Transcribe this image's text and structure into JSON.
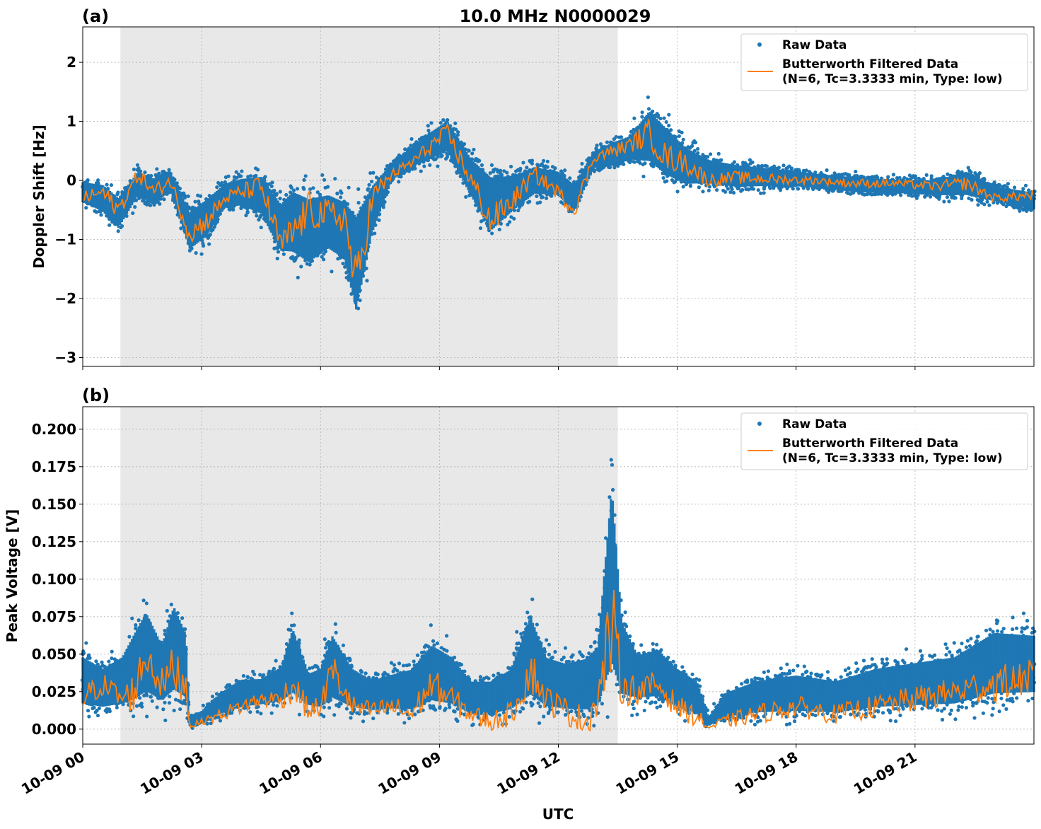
{
  "figure": {
    "title": "10.0 MHz N0000029",
    "xlabel": "UTC",
    "x_tick_labels": [
      "10-09 00",
      "10-09 03",
      "10-09 06",
      "10-09 09",
      "10-09 12",
      "10-09 15",
      "10-09 18",
      "10-09 21"
    ],
    "colors": {
      "raw": "#1f77b4",
      "filtered": "#ff7f0e",
      "night_shade": "#e8e8e8",
      "grid": "#b0b0b0"
    }
  },
  "chart_data": [
    {
      "type": "scatter",
      "panel_label": "(a)",
      "title": "10.0 MHz N0000029",
      "xlabel": "",
      "ylabel": "Doppler Shift [Hz]",
      "x_unit": "hours UTC since 10-09 00:00",
      "xlim": [
        0,
        24
      ],
      "ylim": [
        -3.15,
        2.6
      ],
      "yticks": [
        2,
        1,
        0,
        -1,
        -2,
        -3
      ],
      "ytick_labels": [
        "2",
        "1",
        "0",
        "−1",
        "−2",
        "−3"
      ],
      "shaded_region": [
        0.95,
        13.5
      ],
      "grid": true,
      "legend": {
        "placement": "top-right",
        "entries": [
          "Raw Data",
          "Butterworth Filtered Data",
          "(N=6, Tc=3.3333 min, Type: low)"
        ]
      },
      "series": [
        {
          "name": "Raw Data",
          "kind": "scatter-band",
          "x": [
            0,
            0.5,
            0.9,
            1.4,
            1.8,
            2.2,
            2.7,
            3.1,
            3.6,
            4.0,
            4.5,
            5.0,
            5.3,
            5.7,
            6.2,
            6.6,
            6.9,
            7.3,
            7.8,
            8.3,
            8.8,
            9.2,
            9.8,
            10.3,
            10.9,
            11.4,
            12.0,
            12.4,
            12.9,
            13.4,
            13.8,
            14.3,
            14.7,
            15.2,
            15.8,
            16.5,
            17.5,
            18.5,
            19.5,
            20.5,
            21.5,
            22.3,
            23.0,
            24.0
          ],
          "upper": [
            0.1,
            0.1,
            -0.1,
            0.3,
            0.2,
            0.3,
            -0.3,
            -0.1,
            0.1,
            0.2,
            0.3,
            -0.1,
            0.2,
            0.1,
            0.1,
            0.0,
            0.0,
            0.2,
            0.4,
            0.7,
            1.0,
            1.2,
            0.6,
            0.4,
            0.3,
            0.4,
            0.3,
            0.1,
            0.6,
            0.8,
            0.9,
            1.5,
            1.2,
            0.8,
            0.5,
            0.4,
            0.3,
            0.2,
            0.15,
            0.1,
            0.1,
            0.3,
            0.0,
            -0.1
          ],
          "lower": [
            -0.5,
            -0.7,
            -1.0,
            -0.4,
            -0.6,
            -0.3,
            -1.4,
            -1.2,
            -0.6,
            -0.6,
            -0.8,
            -1.5,
            -1.6,
            -1.8,
            -1.5,
            -1.7,
            -2.8,
            -1.2,
            -0.1,
            0.1,
            0.2,
            0.3,
            -0.5,
            -1.2,
            -0.7,
            -0.4,
            -0.4,
            -0.7,
            0.1,
            0.1,
            0.2,
            0.0,
            -0.2,
            -0.3,
            -0.2,
            -0.25,
            -0.2,
            -0.2,
            -0.3,
            -0.3,
            -0.35,
            -0.4,
            -0.45,
            -0.6
          ]
        },
        {
          "name": "Butterworth Filtered Data",
          "kind": "line",
          "x": [
            0,
            0.5,
            0.9,
            1.4,
            1.8,
            2.2,
            2.7,
            3.1,
            3.6,
            4.0,
            4.5,
            5.0,
            5.3,
            5.7,
            6.2,
            6.6,
            6.9,
            7.3,
            7.8,
            8.3,
            8.8,
            9.2,
            9.8,
            10.3,
            10.9,
            11.4,
            12.0,
            12.4,
            12.9,
            13.4,
            13.8,
            14.3,
            14.7,
            15.2,
            15.8,
            16.5,
            17.5,
            18.5,
            19.5,
            20.5,
            21.5,
            22.3,
            23.0,
            24.0
          ],
          "y": [
            -0.3,
            -0.2,
            -0.5,
            0.1,
            -0.2,
            0.0,
            -0.9,
            -0.7,
            -0.3,
            -0.2,
            -0.1,
            -1.1,
            -0.9,
            -0.5,
            -0.6,
            -0.6,
            -1.8,
            -0.3,
            0.1,
            0.3,
            0.6,
            0.8,
            0.0,
            -0.7,
            -0.3,
            0.1,
            -0.2,
            -0.5,
            0.4,
            0.5,
            0.6,
            0.8,
            0.4,
            0.3,
            0.0,
            0.05,
            0.02,
            0.0,
            -0.05,
            -0.05,
            -0.1,
            -0.05,
            -0.3,
            -0.25
          ]
        }
      ]
    },
    {
      "type": "scatter",
      "panel_label": "(b)",
      "title": "",
      "xlabel": "UTC",
      "ylabel": "Peak Voltage [V]",
      "x_unit": "hours UTC since 10-09 00:00",
      "xlim": [
        0,
        24
      ],
      "ylim": [
        -0.01,
        0.215
      ],
      "yticks": [
        0.2,
        0.175,
        0.15,
        0.125,
        0.1,
        0.075,
        0.05,
        0.025,
        0.0
      ],
      "ytick_labels": [
        "0.200",
        "0.175",
        "0.150",
        "0.125",
        "0.100",
        "0.075",
        "0.050",
        "0.025",
        "0.000"
      ],
      "shaded_region": [
        0.95,
        13.5
      ],
      "grid": true,
      "legend": {
        "placement": "top-right",
        "entries": [
          "Raw Data",
          "Butterworth Filtered Data",
          "(N=6, Tc=3.3333 min, Type: low)"
        ]
      },
      "series": [
        {
          "name": "Raw Data",
          "kind": "scatter-band",
          "x": [
            0,
            0.5,
            1.0,
            1.3,
            1.6,
            2.0,
            2.3,
            2.6,
            2.7,
            3.0,
            3.5,
            4.0,
            4.5,
            5.0,
            5.3,
            5.7,
            6.0,
            6.3,
            6.8,
            7.3,
            7.8,
            8.3,
            8.8,
            9.3,
            9.8,
            10.3,
            10.8,
            11.3,
            11.7,
            12.2,
            12.7,
            13.0,
            13.35,
            13.6,
            14.0,
            14.5,
            15.0,
            15.5,
            15.8,
            16.2,
            17.0,
            18.0,
            19.0,
            20.0,
            21.0,
            22.0,
            23.0,
            24.0
          ],
          "upper": [
            0.06,
            0.05,
            0.06,
            0.08,
            0.098,
            0.07,
            0.103,
            0.08,
            0.01,
            0.015,
            0.03,
            0.04,
            0.04,
            0.05,
            0.083,
            0.045,
            0.05,
            0.078,
            0.05,
            0.04,
            0.045,
            0.05,
            0.07,
            0.06,
            0.04,
            0.04,
            0.05,
            0.095,
            0.06,
            0.055,
            0.06,
            0.07,
            0.205,
            0.09,
            0.06,
            0.065,
            0.05,
            0.04,
            0.01,
            0.03,
            0.04,
            0.045,
            0.04,
            0.05,
            0.055,
            0.06,
            0.08,
            0.077
          ],
          "lower": [
            0.005,
            0.005,
            0.005,
            0.003,
            0.005,
            0.005,
            0.005,
            0.005,
            0.0,
            0.002,
            0.005,
            0.008,
            0.01,
            0.01,
            0.008,
            0.008,
            0.005,
            0.005,
            0.005,
            0.005,
            0.005,
            0.003,
            0.005,
            0.005,
            0.002,
            0.002,
            0.003,
            0.003,
            0.003,
            0.002,
            0.0,
            0.001,
            0.0,
            0.005,
            0.01,
            0.01,
            0.005,
            0.002,
            0.0,
            0.002,
            0.003,
            0.003,
            0.003,
            0.005,
            0.005,
            0.005,
            0.008,
            0.01
          ]
        },
        {
          "name": "Butterworth Filtered Data",
          "kind": "line",
          "x": [
            0,
            0.5,
            1.0,
            1.3,
            1.6,
            2.0,
            2.3,
            2.6,
            2.7,
            3.0,
            3.5,
            4.0,
            4.5,
            5.0,
            5.3,
            5.7,
            6.0,
            6.3,
            6.8,
            7.3,
            7.8,
            8.3,
            8.8,
            9.3,
            9.8,
            10.3,
            10.8,
            11.3,
            11.7,
            12.2,
            12.7,
            13.0,
            13.35,
            13.6,
            14.0,
            14.5,
            15.0,
            15.5,
            15.8,
            16.2,
            17.0,
            18.0,
            19.0,
            20.0,
            21.0,
            22.0,
            23.0,
            24.0
          ],
          "y": [
            0.02,
            0.03,
            0.02,
            0.025,
            0.05,
            0.03,
            0.04,
            0.03,
            0.002,
            0.005,
            0.01,
            0.015,
            0.02,
            0.02,
            0.03,
            0.012,
            0.015,
            0.04,
            0.015,
            0.012,
            0.015,
            0.01,
            0.03,
            0.02,
            0.01,
            0.005,
            0.01,
            0.04,
            0.02,
            0.012,
            0.005,
            0.02,
            0.07,
            0.03,
            0.025,
            0.03,
            0.015,
            0.008,
            0.001,
            0.005,
            0.01,
            0.015,
            0.01,
            0.015,
            0.02,
            0.025,
            0.03,
            0.035
          ]
        }
      ]
    }
  ]
}
